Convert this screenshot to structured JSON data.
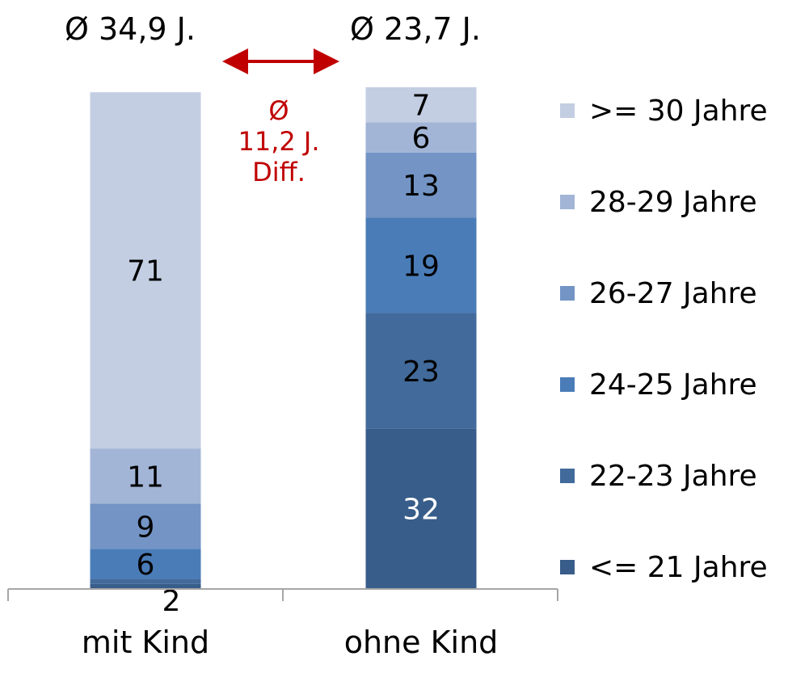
{
  "averages": {
    "mit_kind": "Ø 34,9 J.",
    "ohne_kind": "Ø 23,7 J."
  },
  "difference": {
    "line1": "Ø",
    "line2": "11,2 J.",
    "line3": "Diff."
  },
  "colors": {
    "arrow": "#c00000",
    "axis": "#a6a6a6"
  },
  "chart_data": {
    "type": "bar",
    "stacked": true,
    "categories": [
      "mit Kind",
      "ohne Kind"
    ],
    "series": [
      {
        "name": "<= 21 Jahre",
        "values": [
          1,
          32
        ],
        "color": "#385d8a",
        "labels": [
          "",
          "32"
        ],
        "label_color": [
          "#000000",
          "#ffffff"
        ]
      },
      {
        "name": "22-23 Jahre",
        "values": [
          1,
          23
        ],
        "color": "#426a9b",
        "labels": [
          "",
          "23"
        ],
        "label_color": [
          "#000000",
          "#000000"
        ]
      },
      {
        "name": "24-25 Jahre",
        "values": [
          6,
          19
        ],
        "color": "#4a7cb8",
        "labels": [
          "6",
          "19"
        ],
        "label_color": [
          "#000000",
          "#000000"
        ]
      },
      {
        "name": "26-27 Jahre",
        "values": [
          9,
          13
        ],
        "color": "#7394c5",
        "labels": [
          "9",
          "13"
        ],
        "label_color": [
          "#000000",
          "#000000"
        ]
      },
      {
        "name": "28-29 Jahre",
        "values": [
          11,
          6
        ],
        "color": "#a2b5d6",
        "labels": [
          "11",
          "6"
        ],
        "label_color": [
          "#000000",
          "#000000"
        ]
      },
      {
        "name": ">= 30 Jahre",
        "values": [
          71,
          7
        ],
        "color": "#c3cee2",
        "labels": [
          "71",
          "7"
        ],
        "label_color": [
          "#000000",
          "#000000"
        ]
      }
    ],
    "extra_labels": [
      {
        "category": "mit Kind",
        "text": "2"
      }
    ],
    "ylim": [
      0,
      100
    ],
    "grid": false,
    "legend": "right"
  }
}
